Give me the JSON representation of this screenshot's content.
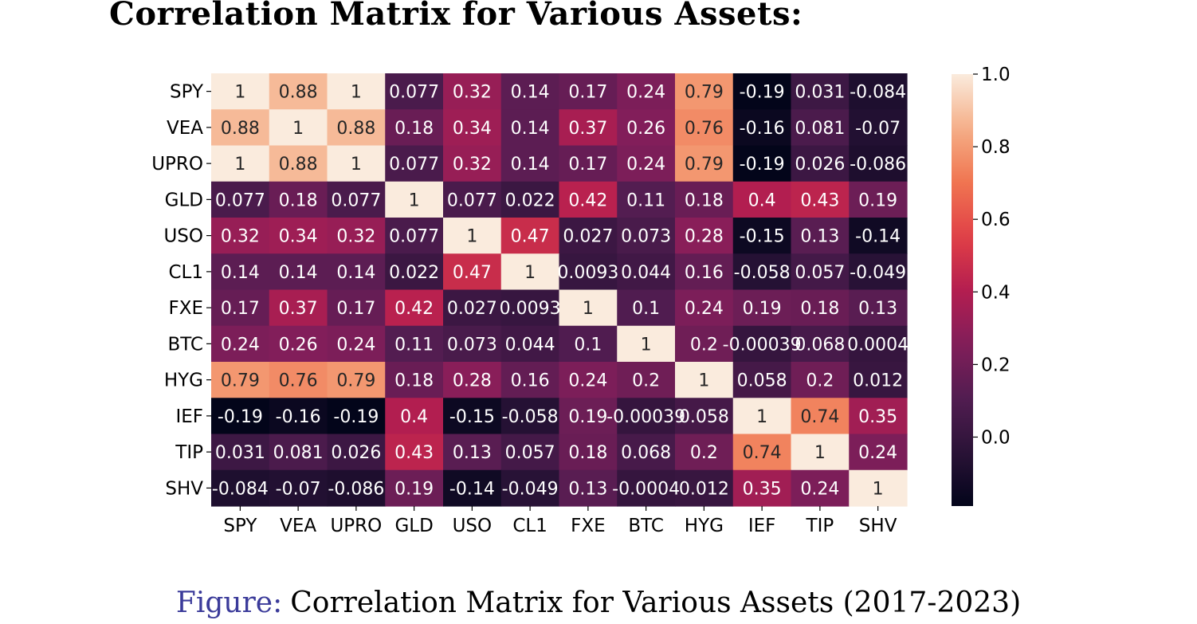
{
  "page": {
    "title": "Correlation Matrix for Various Assets:"
  },
  "caption": {
    "label": "Figure:",
    "text": "Correlation Matrix for Various Assets (2017-2023)"
  },
  "chart_data": {
    "type": "heatmap",
    "rows": [
      "SPY",
      "VEA",
      "UPRO",
      "GLD",
      "USO",
      "CL1",
      "FXE",
      "BTC",
      "HYG",
      "IEF",
      "TIP",
      "SHV"
    ],
    "cols": [
      "SPY",
      "VEA",
      "UPRO",
      "GLD",
      "USO",
      "CL1",
      "FXE",
      "BTC",
      "HYG",
      "IEF",
      "TIP",
      "SHV"
    ],
    "values": [
      [
        1,
        0.88,
        1,
        0.077,
        0.32,
        0.14,
        0.17,
        0.24,
        0.79,
        -0.19,
        0.031,
        -0.084
      ],
      [
        0.88,
        1,
        0.88,
        0.18,
        0.34,
        0.14,
        0.37,
        0.26,
        0.76,
        -0.16,
        0.081,
        -0.07
      ],
      [
        1,
        0.88,
        1,
        0.077,
        0.32,
        0.14,
        0.17,
        0.24,
        0.79,
        -0.19,
        0.026,
        -0.086
      ],
      [
        0.077,
        0.18,
        0.077,
        1,
        0.077,
        0.022,
        0.42,
        0.11,
        0.18,
        0.4,
        0.43,
        0.19
      ],
      [
        0.32,
        0.34,
        0.32,
        0.077,
        1,
        0.47,
        0.027,
        0.073,
        0.28,
        -0.15,
        0.13,
        -0.14
      ],
      [
        0.14,
        0.14,
        0.14,
        0.022,
        0.47,
        1,
        0.0093,
        0.044,
        0.16,
        -0.058,
        0.057,
        -0.049
      ],
      [
        0.17,
        0.37,
        0.17,
        0.42,
        0.027,
        0.0093,
        1,
        0.1,
        0.24,
        0.19,
        0.18,
        0.13
      ],
      [
        0.24,
        0.26,
        0.24,
        0.11,
        0.073,
        0.044,
        0.1,
        1,
        0.2,
        -0.00039,
        0.068,
        0.0004
      ],
      [
        0.79,
        0.76,
        0.79,
        0.18,
        0.28,
        0.16,
        0.24,
        0.2,
        1,
        0.058,
        0.2,
        0.012
      ],
      [
        -0.19,
        -0.16,
        -0.19,
        0.4,
        -0.15,
        -0.058,
        0.19,
        -0.00039,
        0.058,
        1,
        0.74,
        0.35
      ],
      [
        0.031,
        0.081,
        0.026,
        0.43,
        0.13,
        0.057,
        0.18,
        0.068,
        0.2,
        0.74,
        1,
        0.24
      ],
      [
        -0.084,
        -0.07,
        -0.086,
        0.19,
        -0.14,
        -0.049,
        0.13,
        -0.0004,
        0.012,
        0.35,
        0.24,
        1
      ]
    ],
    "annotations": [
      [
        "1",
        "0.88",
        "1",
        "0.077",
        "0.32",
        "0.14",
        "0.17",
        "0.24",
        "0.79",
        "-0.19",
        "0.031",
        "-0.084"
      ],
      [
        "0.88",
        "1",
        "0.88",
        "0.18",
        "0.34",
        "0.14",
        "0.37",
        "0.26",
        "0.76",
        "-0.16",
        "0.081",
        "-0.07"
      ],
      [
        "1",
        "0.88",
        "1",
        "0.077",
        "0.32",
        "0.14",
        "0.17",
        "0.24",
        "0.79",
        "-0.19",
        "0.026",
        "-0.086"
      ],
      [
        "0.077",
        "0.18",
        "0.077",
        "1",
        "0.077",
        "0.022",
        "0.42",
        "0.11",
        "0.18",
        "0.4",
        "0.43",
        "0.19"
      ],
      [
        "0.32",
        "0.34",
        "0.32",
        "0.077",
        "1",
        "0.47",
        "0.027",
        "0.073",
        "0.28",
        "-0.15",
        "0.13",
        "-0.14"
      ],
      [
        "0.14",
        "0.14",
        "0.14",
        "0.022",
        "0.47",
        "1",
        "0.0093",
        "0.044",
        "0.16",
        "-0.058",
        "0.057",
        "-0.049"
      ],
      [
        "0.17",
        "0.37",
        "0.17",
        "0.42",
        "0.027",
        "0.0093",
        "1",
        "0.1",
        "0.24",
        "0.19",
        "0.18",
        "0.13"
      ],
      [
        "0.24",
        "0.26",
        "0.24",
        "0.11",
        "0.073",
        "0.044",
        "0.1",
        "1",
        "0.2",
        "-0.00039",
        "0.068",
        "0.0004"
      ],
      [
        "0.79",
        "0.76",
        "0.79",
        "0.18",
        "0.28",
        "0.16",
        "0.24",
        "0.2",
        "1",
        "0.058",
        "0.2",
        "0.012"
      ],
      [
        "-0.19",
        "-0.16",
        "-0.19",
        "0.4",
        "-0.15",
        "-0.058",
        "0.19",
        "-0.00039",
        "0.058",
        "1",
        "0.74",
        "0.35"
      ],
      [
        "0.031",
        "0.081",
        "0.026",
        "0.43",
        "0.13",
        "0.057",
        "0.18",
        "0.068",
        "0.2",
        "0.74",
        "1",
        "0.24"
      ],
      [
        "-0.084",
        "-0.07",
        "-0.086",
        "0.19",
        "-0.14",
        "-0.049",
        "0.13",
        "-0.0004",
        "0.012",
        "0.35",
        "0.24",
        "1"
      ]
    ],
    "colorbar": {
      "range": [
        -0.19,
        1.0
      ],
      "ticks": [
        0.0,
        0.2,
        0.4,
        0.6,
        0.8,
        1.0
      ],
      "tick_labels": [
        "0.0",
        "0.2",
        "0.4",
        "0.6",
        "0.8",
        "1.0"
      ]
    },
    "colormap": "rocket"
  }
}
